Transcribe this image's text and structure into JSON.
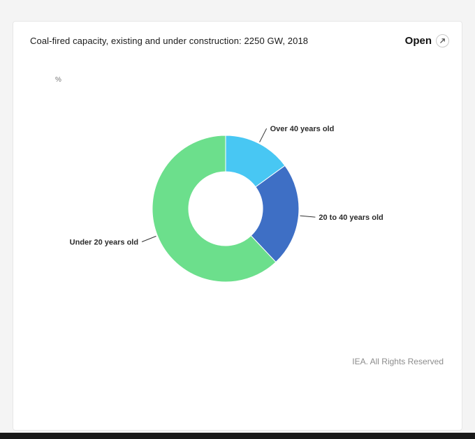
{
  "card": {
    "title": "Coal-fired capacity, existing and under construction: 2250 GW, 2018",
    "open_label": "Open",
    "open_icon": "external-link-arrow",
    "footer": "IEA. All Rights Reserved"
  },
  "chart_data": {
    "type": "pie",
    "donut": true,
    "title": "Coal-fired capacity, existing and under construction: 2250 GW, 2018",
    "unit_label": "%",
    "labels": [
      "Over 40 years old",
      "20 to 40 years old",
      "Under 20 years old"
    ],
    "values": [
      15,
      23,
      62
    ],
    "colors": [
      "#48C7F3",
      "#3E6FC5",
      "#6CDF8C"
    ],
    "start_angle": 0,
    "inner_radius_ratio": 0.5,
    "legend": "none",
    "data_label_style": "outside-with-connector"
  }
}
